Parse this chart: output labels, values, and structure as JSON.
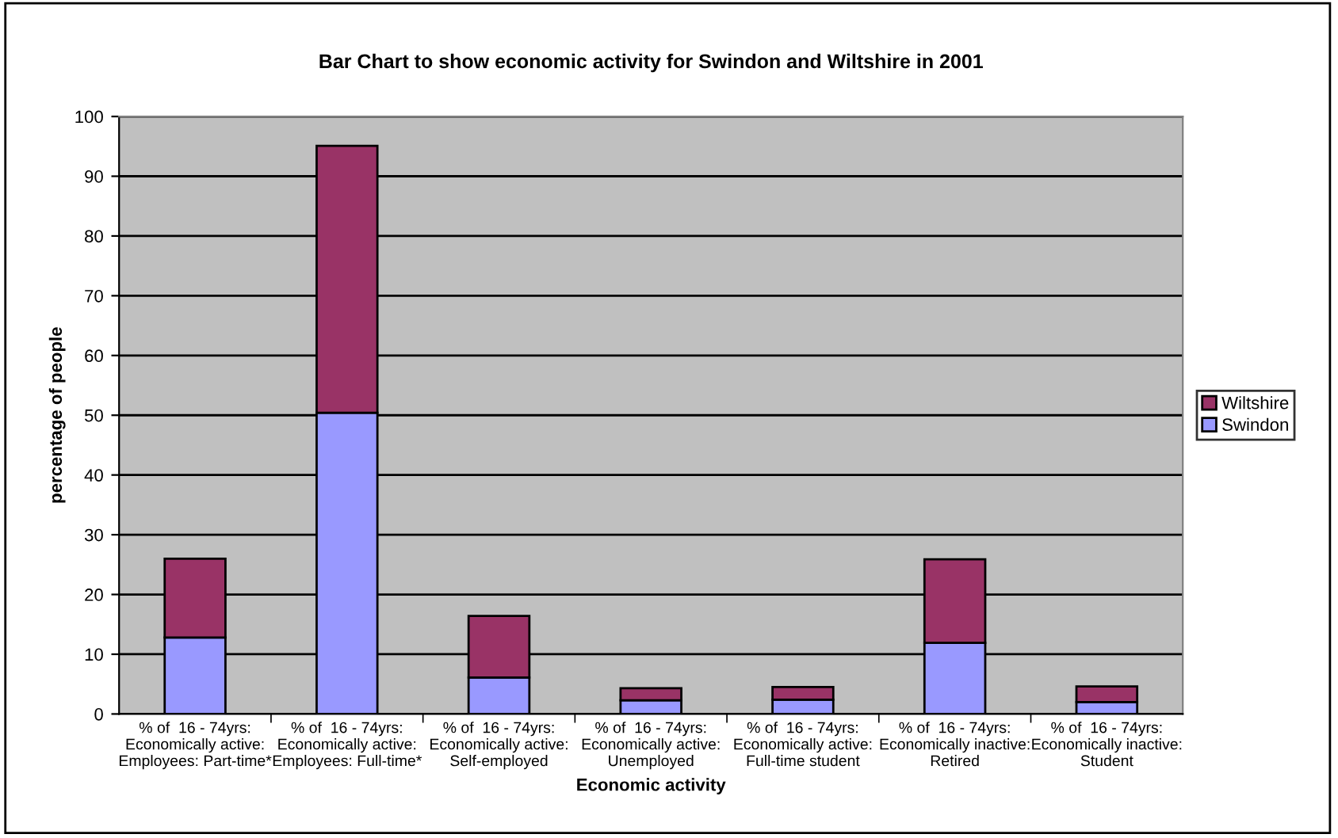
{
  "chart_data": {
    "type": "bar",
    "title": "Bar Chart to show economic activity for Swindon and Wiltshire in 2001",
    "xlabel": "Economic activity",
    "ylabel": "percentage of people",
    "categories": [
      "% of  16 - 74yrs:\nEconomically active:\nEmployees: Part-time*",
      "% of  16 - 74yrs:\nEconomically active:\nEmployees: Full-time*",
      "% of  16 - 74yrs:\nEconomically active:\nSelf-employed",
      "% of  16 - 74yrs:\nEconomically active:\nUnemployed",
      "% of  16 - 74yrs:\nEconomically active:\nFull-time student",
      "% of  16 - 74yrs:\nEconomically inactive:\nRetired",
      "% of  16 - 74yrs:\nEconomically inactive:\nStudent"
    ],
    "series": [
      {
        "name": "Swindon",
        "color": "#9999ff",
        "values": [
          12.8,
          50.4,
          6.1,
          2.3,
          2.4,
          11.9,
          2.0
        ]
      },
      {
        "name": "Wiltshire",
        "color": "#993366",
        "values": [
          13.2,
          44.7,
          10.3,
          2.0,
          2.1,
          14.0,
          2.6
        ]
      }
    ],
    "stacked": true,
    "ylim": [
      0,
      100
    ],
    "yticks": [
      0,
      10,
      20,
      30,
      40,
      50,
      60,
      70,
      80,
      90,
      100
    ],
    "grid": "y",
    "legend": "right"
  }
}
